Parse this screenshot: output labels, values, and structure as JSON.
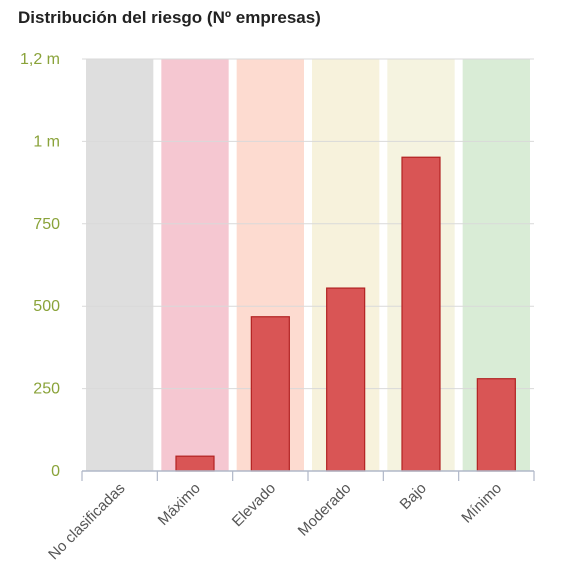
{
  "title": "Distribución del riesgo (Nº empresas)",
  "colors": {
    "bar_fill": "#d95555",
    "bar_stroke": "#b22222",
    "axis_label": "#8aa33a",
    "grid": "#d9d9d9",
    "bands": [
      "#dedede",
      "#f5c7d1",
      "#fddbd0",
      "#f7f2dc",
      "#f5f3e0",
      "#d9ecd6"
    ]
  },
  "chart_data": {
    "type": "bar",
    "categories": [
      "No clasificadas",
      "Máximo",
      "Elevado",
      "Moderado",
      "Bajo",
      "Mínimo"
    ],
    "values": [
      0,
      45,
      468,
      555,
      952,
      280
    ],
    "ylim": [
      0,
      1250
    ],
    "yticks": [
      0,
      250,
      500,
      750,
      1000,
      1250
    ],
    "ytick_labels": [
      "0",
      "250",
      "500",
      "750",
      "1 m",
      "1,2 m"
    ],
    "grid": true,
    "xlabel": "",
    "ylabel": ""
  }
}
